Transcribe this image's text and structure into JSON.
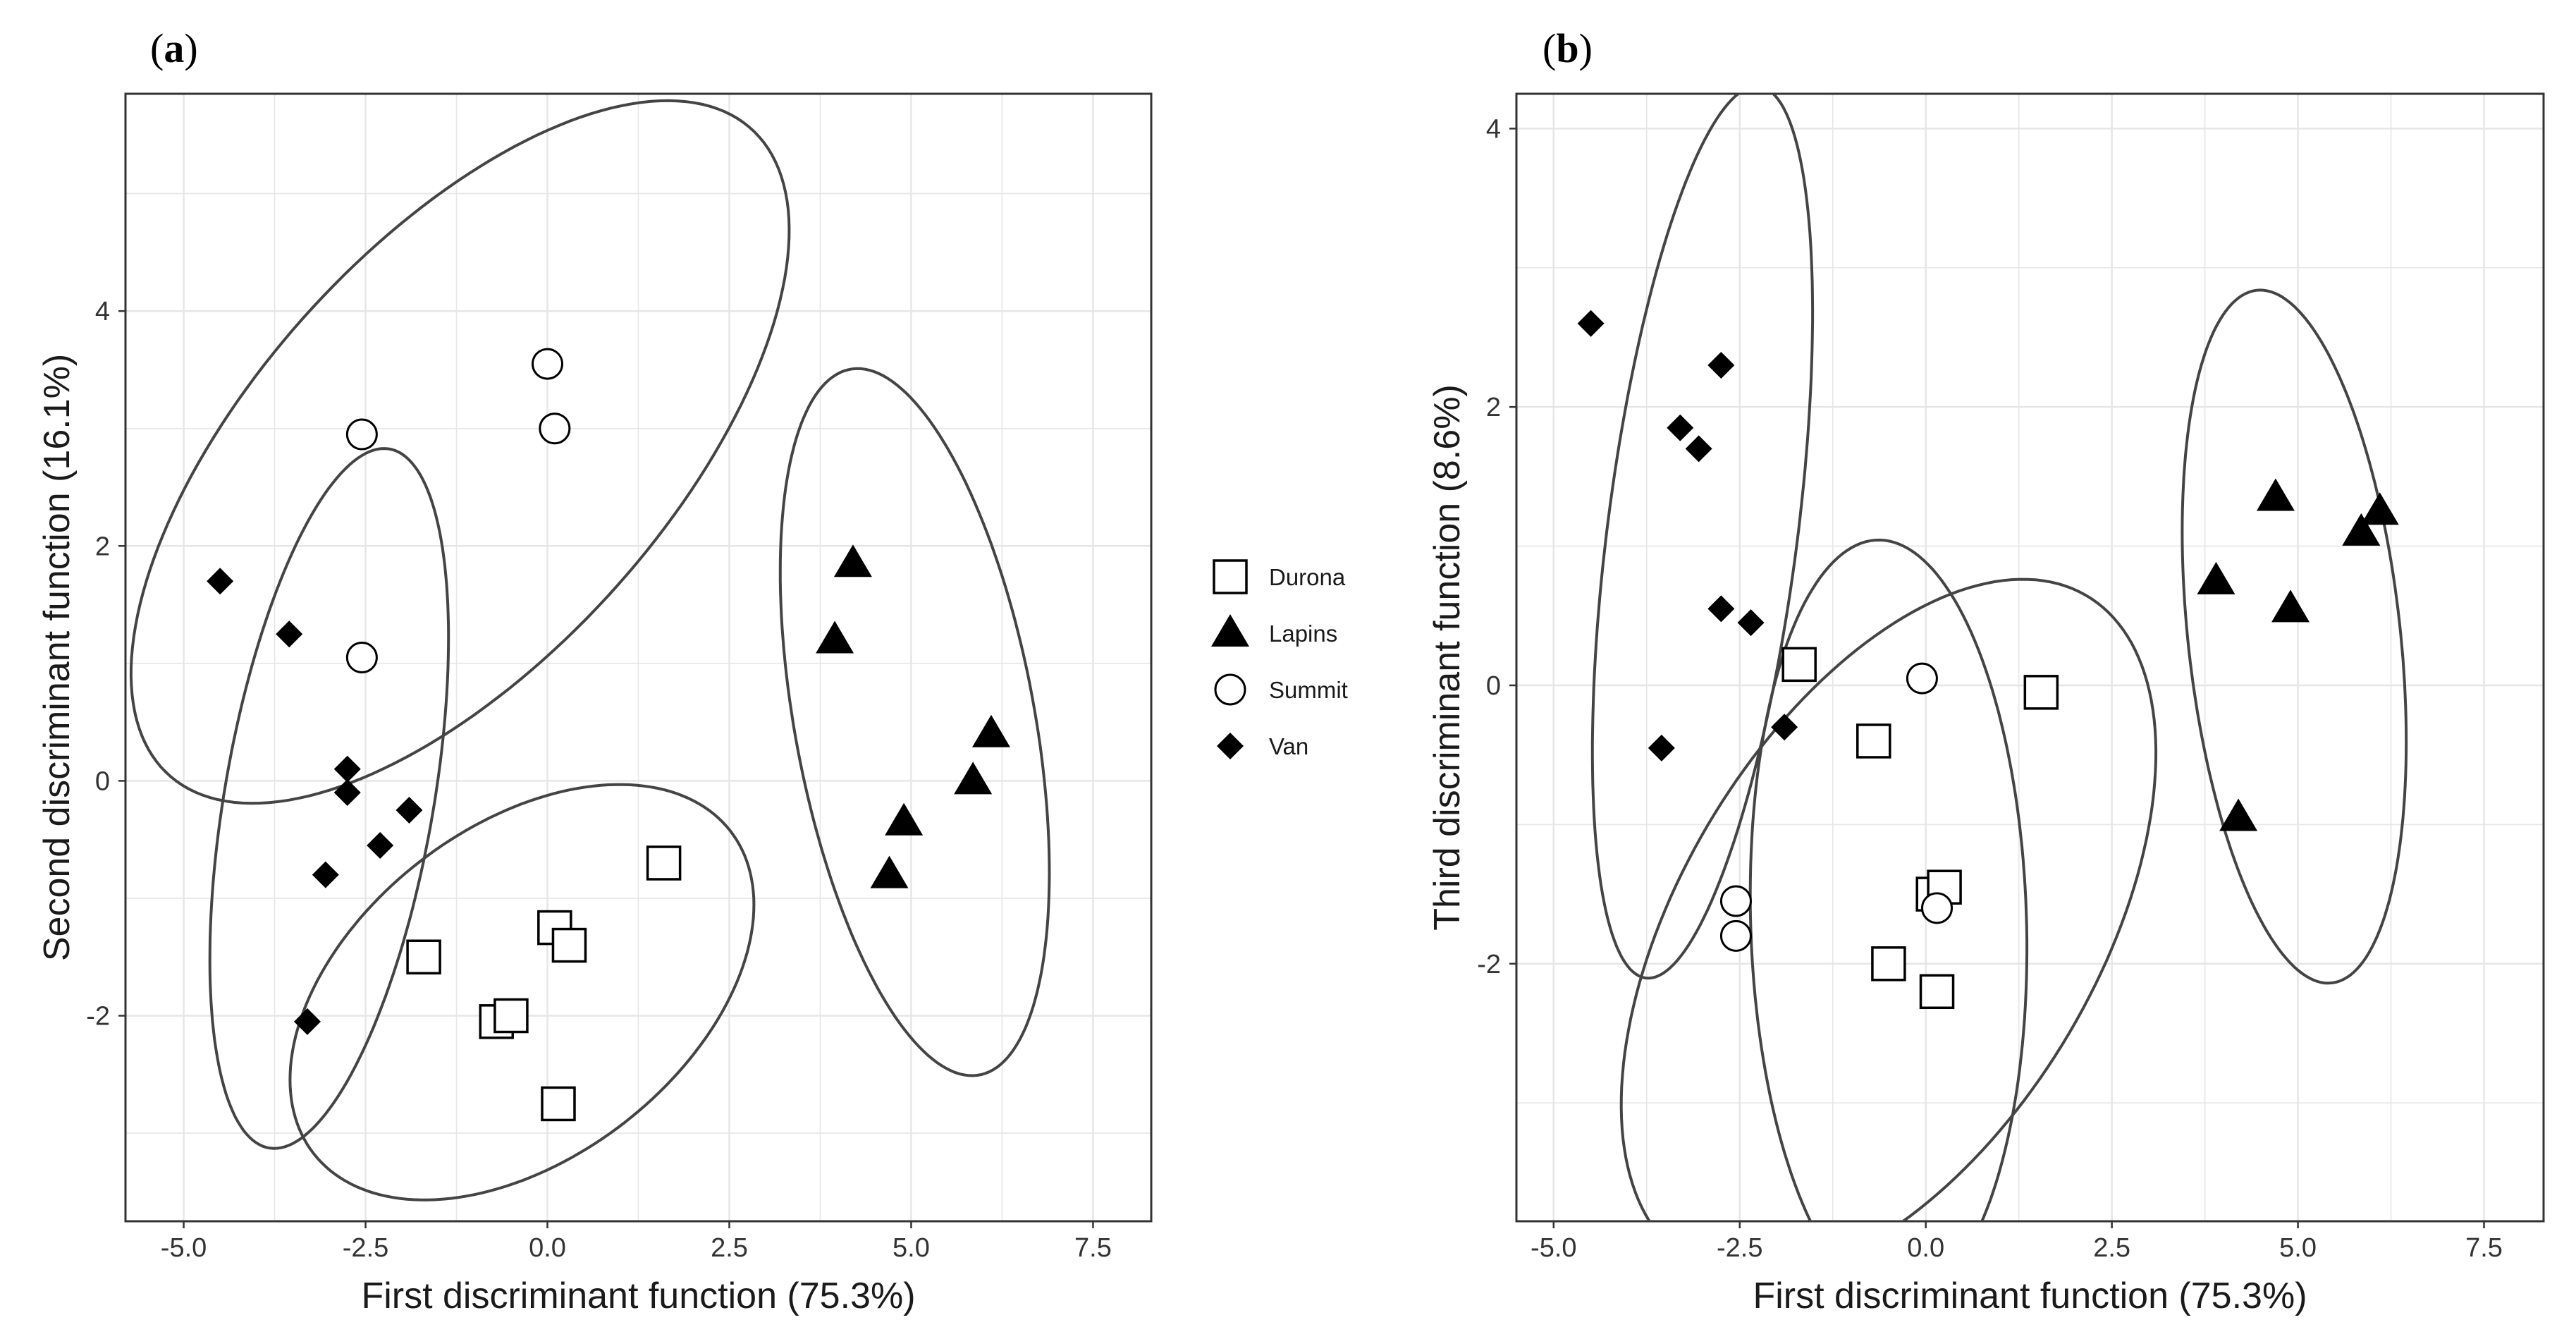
{
  "chart_data": [
    {
      "type": "scatter",
      "panel_label": "a",
      "xlabel": "First discriminant function (75.3%)",
      "ylabel": "Second discriminant function (16.1%)",
      "xlim": [
        -5.8,
        8.3
      ],
      "ylim": [
        -3.75,
        5.85
      ],
      "xticks": [
        -5.0,
        -2.5,
        0.0,
        2.5,
        5.0,
        7.5
      ],
      "xtick_labels": [
        "-5.0",
        "-2.5",
        "0.0",
        "2.5",
        "5.0",
        "7.5"
      ],
      "yticks": [
        -2,
        0,
        2,
        4
      ],
      "ytick_labels": [
        "-2",
        "0",
        "2",
        "4"
      ],
      "grid": true,
      "series": [
        {
          "name": "Durona",
          "marker": "square",
          "points": [
            [
              -1.7,
              -1.5
            ],
            [
              -0.7,
              -2.05
            ],
            [
              -0.5,
              -2.0
            ],
            [
              0.1,
              -1.25
            ],
            [
              0.3,
              -1.4
            ],
            [
              0.15,
              -2.75
            ],
            [
              1.6,
              -0.7
            ]
          ]
        },
        {
          "name": "Lapins",
          "marker": "triangle",
          "points": [
            [
              4.2,
              1.85
            ],
            [
              3.95,
              1.2
            ],
            [
              6.1,
              0.4
            ],
            [
              5.85,
              0.0
            ],
            [
              4.9,
              -0.35
            ],
            [
              4.7,
              -0.8
            ]
          ]
        },
        {
          "name": "Summit",
          "marker": "circle",
          "points": [
            [
              0.0,
              3.55
            ],
            [
              0.1,
              3.0
            ],
            [
              -2.55,
              2.95
            ],
            [
              -2.55,
              1.05
            ]
          ]
        },
        {
          "name": "Van",
          "marker": "diamond",
          "points": [
            [
              -4.5,
              1.7
            ],
            [
              -3.55,
              1.25
            ],
            [
              -2.75,
              0.1
            ],
            [
              -2.75,
              -0.1
            ],
            [
              -1.9,
              -0.25
            ],
            [
              -2.3,
              -0.55
            ],
            [
              -3.05,
              -0.8
            ],
            [
              -3.3,
              -2.05
            ]
          ]
        }
      ],
      "ellipses": [
        {
          "group": "Summit",
          "cx": -1.2,
          "cy": 2.8,
          "rx": 5.0,
          "ry": 2.1,
          "angle_deg": 28
        },
        {
          "group": "Van",
          "cx": -3.0,
          "cy": -0.15,
          "rx": 3.1,
          "ry": 1.4,
          "angle_deg": 72
        },
        {
          "group": "Durona",
          "cx": -0.35,
          "cy": -1.8,
          "rx": 3.3,
          "ry": 1.55,
          "angle_deg": 17
        },
        {
          "group": "Lapins",
          "cx": 5.05,
          "cy": 0.5,
          "rx": 3.15,
          "ry": 1.6,
          "angle_deg": 110
        }
      ]
    },
    {
      "type": "scatter",
      "panel_label": "b",
      "xlabel": "First discriminant function (75.3%)",
      "ylabel": "Third discriminant function (8.6%)",
      "xlim": [
        -5.5,
        8.3
      ],
      "ylim": [
        -3.85,
        4.25
      ],
      "xticks": [
        -5.0,
        -2.5,
        0.0,
        2.5,
        5.0,
        7.5
      ],
      "xtick_labels": [
        "-5.0",
        "-2.5",
        "0.0",
        "2.5",
        "5.0",
        "7.5"
      ],
      "yticks": [
        -2,
        0,
        2,
        4
      ],
      "ytick_labels": [
        "-2",
        "0",
        "2",
        "4"
      ],
      "grid": true,
      "series": [
        {
          "name": "Durona",
          "marker": "square",
          "points": [
            [
              -1.7,
              0.15
            ],
            [
              -0.7,
              -0.4
            ],
            [
              1.55,
              -0.05
            ],
            [
              0.1,
              -1.5
            ],
            [
              0.25,
              -1.45
            ],
            [
              -0.5,
              -2.0
            ],
            [
              0.15,
              -2.2
            ]
          ]
        },
        {
          "name": "Lapins",
          "marker": "triangle",
          "points": [
            [
              4.7,
              1.35
            ],
            [
              6.1,
              1.25
            ],
            [
              5.85,
              1.1
            ],
            [
              3.9,
              0.75
            ],
            [
              4.9,
              0.55
            ],
            [
              4.2,
              -0.95
            ]
          ]
        },
        {
          "name": "Summit",
          "marker": "circle",
          "points": [
            [
              -0.05,
              0.05
            ],
            [
              0.15,
              -1.6
            ],
            [
              -2.55,
              -1.55
            ],
            [
              -2.55,
              -1.8
            ]
          ]
        },
        {
          "name": "Van",
          "marker": "diamond",
          "points": [
            [
              -4.5,
              2.6
            ],
            [
              -2.75,
              2.3
            ],
            [
              -3.3,
              1.85
            ],
            [
              -3.05,
              1.7
            ],
            [
              -2.75,
              0.55
            ],
            [
              -2.35,
              0.45
            ],
            [
              -3.55,
              -0.45
            ],
            [
              -1.9,
              -0.3
            ]
          ]
        }
      ],
      "ellipses": [
        {
          "group": "Van",
          "cx": -3.0,
          "cy": 1.1,
          "rx": 3.3,
          "ry": 1.25,
          "angle_deg": 75
        },
        {
          "group": "Durona",
          "cx": -0.5,
          "cy": -1.75,
          "rx": 3.9,
          "ry": 2.0,
          "angle_deg": 27
        },
        {
          "group": "Summit",
          "cx": -0.5,
          "cy": -1.7,
          "rx": 2.75,
          "ry": 1.85,
          "angle_deg": 95
        },
        {
          "group": "Lapins",
          "cx": 4.95,
          "cy": 0.35,
          "rx": 2.55,
          "ry": 1.4,
          "angle_deg": 105
        }
      ]
    }
  ],
  "legend": {
    "items": [
      {
        "label": "Durona",
        "marker": "square"
      },
      {
        "label": "Lapins",
        "marker": "triangle"
      },
      {
        "label": "Summit",
        "marker": "circle"
      },
      {
        "label": "Van",
        "marker": "diamond"
      }
    ]
  },
  "colors": {
    "ellipse_stroke": "#444444",
    "grid": "#e6e6e6",
    "panel_border": "#333333",
    "marker_filled": "#000000",
    "marker_hollow_fill": "#ffffff"
  }
}
